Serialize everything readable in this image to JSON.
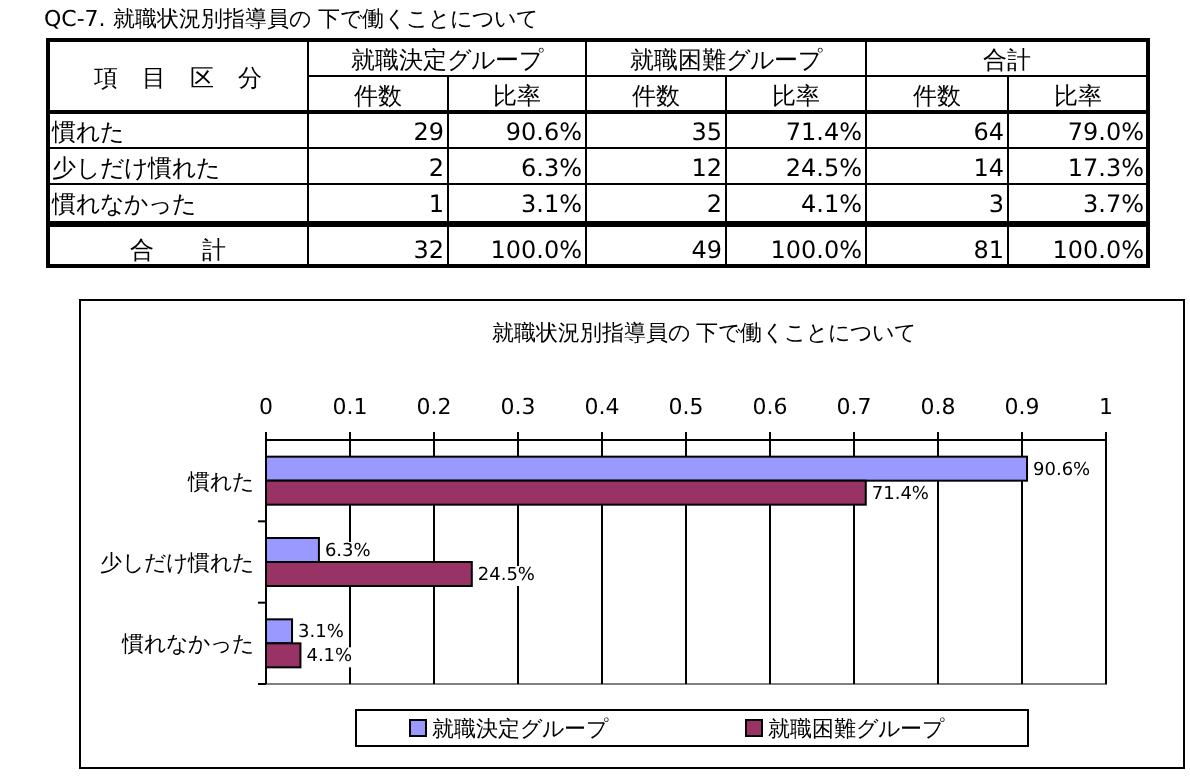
{
  "chart_data": {
    "type": "bar",
    "orientation": "horizontal",
    "title": "就職状況別指導員の 下で働くことについて",
    "categories": [
      "慣れた",
      "少しだけ慣れた",
      "慣れなかった"
    ],
    "series": [
      {
        "name": "就職決定グループ",
        "color": "#9999ff",
        "values": [
          0.906,
          0.063,
          0.031
        ],
        "value_labels": [
          "90.6%",
          "6.3%",
          "3.1%"
        ]
      },
      {
        "name": "就職困難グループ",
        "color": "#993366",
        "values": [
          0.714,
          0.245,
          0.041
        ],
        "value_labels": [
          "71.4%",
          "24.5%",
          "4.1%"
        ]
      }
    ],
    "xlim": [
      0,
      1
    ],
    "xticks": [
      0,
      0.1,
      0.2,
      0.3,
      0.4,
      0.5,
      0.6,
      0.7,
      0.8,
      0.9,
      1
    ],
    "grid": "x",
    "legend": "bottom",
    "annotations": [
      "QC-7. 就職状況別指導員の 下で働くことについて",
      "項　目　区　分",
      "就職決定グループ",
      "就職困難グループ",
      "合計",
      "件数",
      "比率",
      "件数",
      "比率",
      "件数",
      "比率",
      "慣れた",
      "29",
      "90.6%",
      "35",
      "71.4%",
      "64",
      "79.0%",
      "少しだけ慣れた",
      "2",
      "6.3%",
      "12",
      "24.5%",
      "14",
      "17.3%",
      "慣れなかった",
      "1",
      "3.1%",
      "2",
      "4.1%",
      "3",
      "3.7%",
      "合　　計",
      "32",
      "100.0%",
      "49",
      "100.0%",
      "81",
      "100.0%"
    ]
  }
}
